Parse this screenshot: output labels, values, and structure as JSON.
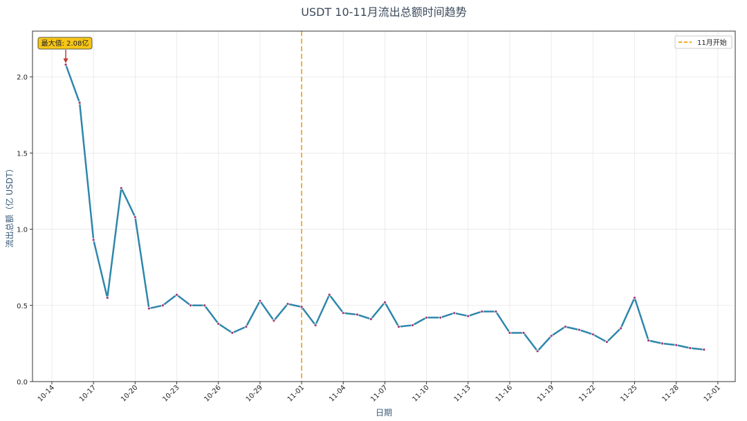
{
  "chart_data": {
    "type": "line",
    "title": "USDT 10-11月流出总额时间趋势",
    "xlabel": "日期",
    "ylabel": "流出总额（亿 USDT）",
    "ylim": [
      0,
      2.3
    ],
    "y_ticks": [
      "0.0",
      "0.5",
      "1.0",
      "1.5",
      "2.0"
    ],
    "x_ticks": [
      "10-14",
      "10-17",
      "10-20",
      "10-23",
      "10-26",
      "10-29",
      "11-01",
      "11-04",
      "11-07",
      "11-10",
      "11-13",
      "11-16",
      "11-19",
      "11-22",
      "11-25",
      "11-28",
      "12-01"
    ],
    "grid": true,
    "legend_position": "top-right",
    "series": [
      {
        "color": "#2e86ab",
        "x": [
          "10-15",
          "10-16",
          "10-17",
          "10-18",
          "10-19",
          "10-20",
          "10-21",
          "10-22",
          "10-23",
          "10-24",
          "10-25",
          "10-26",
          "10-27",
          "10-28",
          "10-29",
          "10-30",
          "10-31",
          "11-01",
          "11-02",
          "11-03",
          "11-04",
          "11-05",
          "11-06",
          "11-07",
          "11-08",
          "11-09",
          "11-10",
          "11-11",
          "11-12",
          "11-13",
          "11-14",
          "11-15",
          "11-16",
          "11-17",
          "11-18",
          "11-19",
          "11-20",
          "11-21",
          "11-22",
          "11-23",
          "11-24",
          "11-25",
          "11-26",
          "11-27",
          "11-28",
          "11-29",
          "11-30"
        ],
        "values": [
          2.08,
          1.83,
          0.93,
          0.55,
          1.27,
          1.08,
          0.48,
          0.5,
          0.57,
          0.5,
          0.5,
          0.38,
          0.32,
          0.36,
          0.53,
          0.4,
          0.51,
          0.49,
          0.37,
          0.57,
          0.45,
          0.44,
          0.41,
          0.52,
          0.36,
          0.37,
          0.42,
          0.42,
          0.45,
          0.43,
          0.46,
          0.46,
          0.32,
          0.32,
          0.2,
          0.3,
          0.36,
          0.34,
          0.31,
          0.26,
          0.35,
          0.55,
          0.27,
          0.25,
          0.24,
          0.22,
          0.21
        ]
      }
    ],
    "reference_line": {
      "x": "11-01",
      "label": "11月开始",
      "color": "#f5a623"
    },
    "annotation": {
      "text": "最大值: 2.08亿",
      "x": "10-15",
      "value": 2.08
    }
  }
}
